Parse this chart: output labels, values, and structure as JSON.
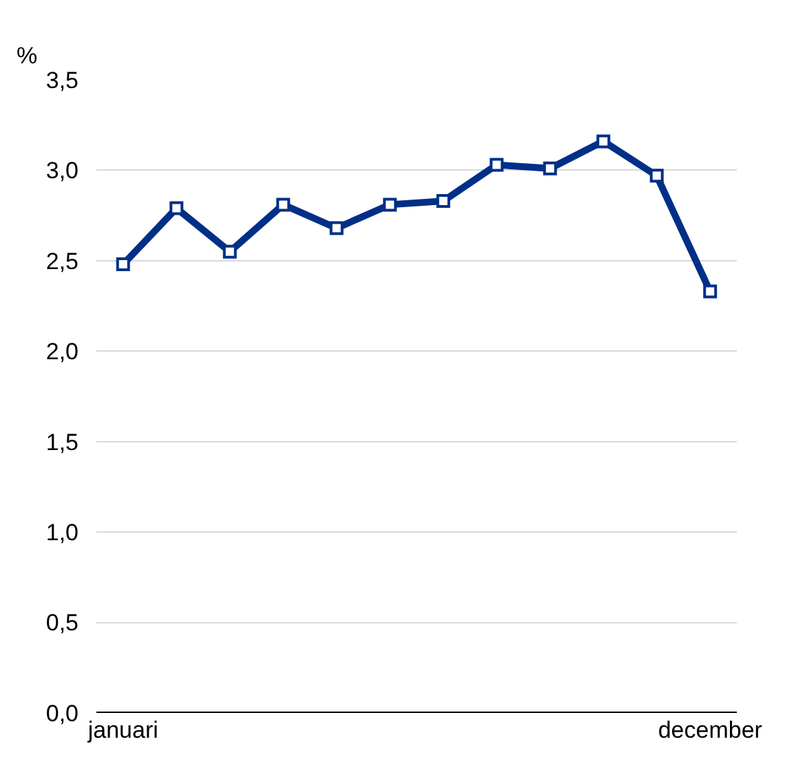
{
  "chart_data": {
    "type": "line",
    "ylabel": "%",
    "categories": [
      "januari",
      null,
      null,
      null,
      null,
      null,
      null,
      null,
      null,
      null,
      null,
      "december"
    ],
    "series": [
      {
        "color": "#002f87",
        "values": [
          2.48,
          2.79,
          2.55,
          2.81,
          2.68,
          2.81,
          2.83,
          3.03,
          3.01,
          3.16,
          2.97,
          2.33
        ]
      }
    ],
    "ylim": [
      0,
      3.5
    ],
    "yticks": [
      {
        "value": 0,
        "label": "0,0"
      },
      {
        "value": 0.5,
        "label": "0,5"
      },
      {
        "value": 1,
        "label": "1,0"
      },
      {
        "value": 1.5,
        "label": "1,5"
      },
      {
        "value": 2,
        "label": "2,0"
      },
      {
        "value": 2.5,
        "label": "2,5"
      },
      {
        "value": 3,
        "label": "3,0"
      },
      {
        "value": 3.5,
        "label": "3,5"
      }
    ],
    "grid": "y",
    "legend": false,
    "marker": "square",
    "line_style": "solid"
  }
}
